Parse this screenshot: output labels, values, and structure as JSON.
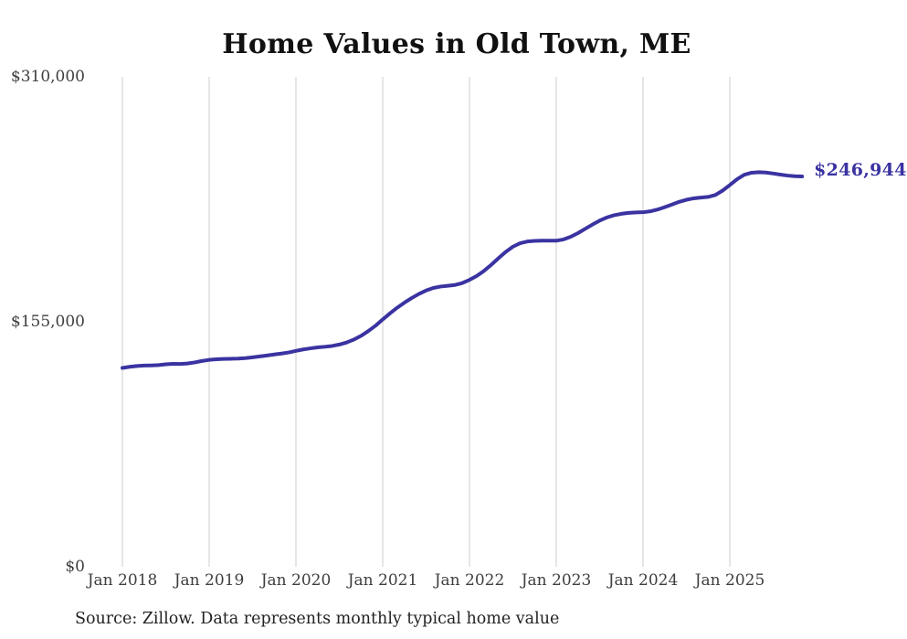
{
  "chart_data": {
    "type": "line",
    "title": "Home Values in Old Town, ME",
    "source_note": "Source: Zillow. Data represents monthly typical home value",
    "end_label": "$246,944",
    "xlabel": "",
    "ylabel": "",
    "ylim": [
      0,
      310000
    ],
    "grid": "vertical-only",
    "legend_position": "none",
    "line_color": "#3a33a1",
    "gridline_color": "#cccccc",
    "x_ticks": [
      "Jan 2018",
      "Jan 2019",
      "Jan 2020",
      "Jan 2021",
      "Jan 2022",
      "Jan 2023",
      "Jan 2024",
      "Jan 2025"
    ],
    "y_ticks": [
      {
        "label": "$0",
        "value": 0
      },
      {
        "label": "$155,000",
        "value": 155000
      },
      {
        "label": "$310,000",
        "value": 310000
      }
    ],
    "series": [
      {
        "name": "Monthly typical home value",
        "start_month": "2018-01",
        "frequency": "monthly",
        "values": [
          125800,
          126500,
          127000,
          127300,
          127400,
          127600,
          128100,
          128400,
          128300,
          128600,
          129300,
          130200,
          130900,
          131300,
          131500,
          131600,
          131700,
          132000,
          132500,
          133100,
          133700,
          134300,
          134900,
          135600,
          136600,
          137500,
          138200,
          138800,
          139200,
          139700,
          140600,
          141900,
          143700,
          146100,
          149100,
          152500,
          156500,
          160300,
          163900,
          167100,
          170000,
          172600,
          174800,
          176400,
          177300,
          177800,
          178300,
          179500,
          181500,
          184000,
          187200,
          191000,
          195200,
          199200,
          202500,
          204700,
          205800,
          206200,
          206300,
          206300,
          206300,
          207100,
          208800,
          211100,
          213800,
          216500,
          219000,
          221000,
          222400,
          223300,
          223900,
          224200,
          224300,
          224900,
          226000,
          227500,
          229200,
          230900,
          232200,
          233100,
          233600,
          234000,
          235200,
          238000,
          241500,
          245200,
          248000,
          249300,
          249600,
          249400,
          248800,
          248100,
          247500,
          247100,
          246944
        ]
      }
    ],
    "last_point": {
      "month": "2025-11",
      "value": 246944
    }
  }
}
